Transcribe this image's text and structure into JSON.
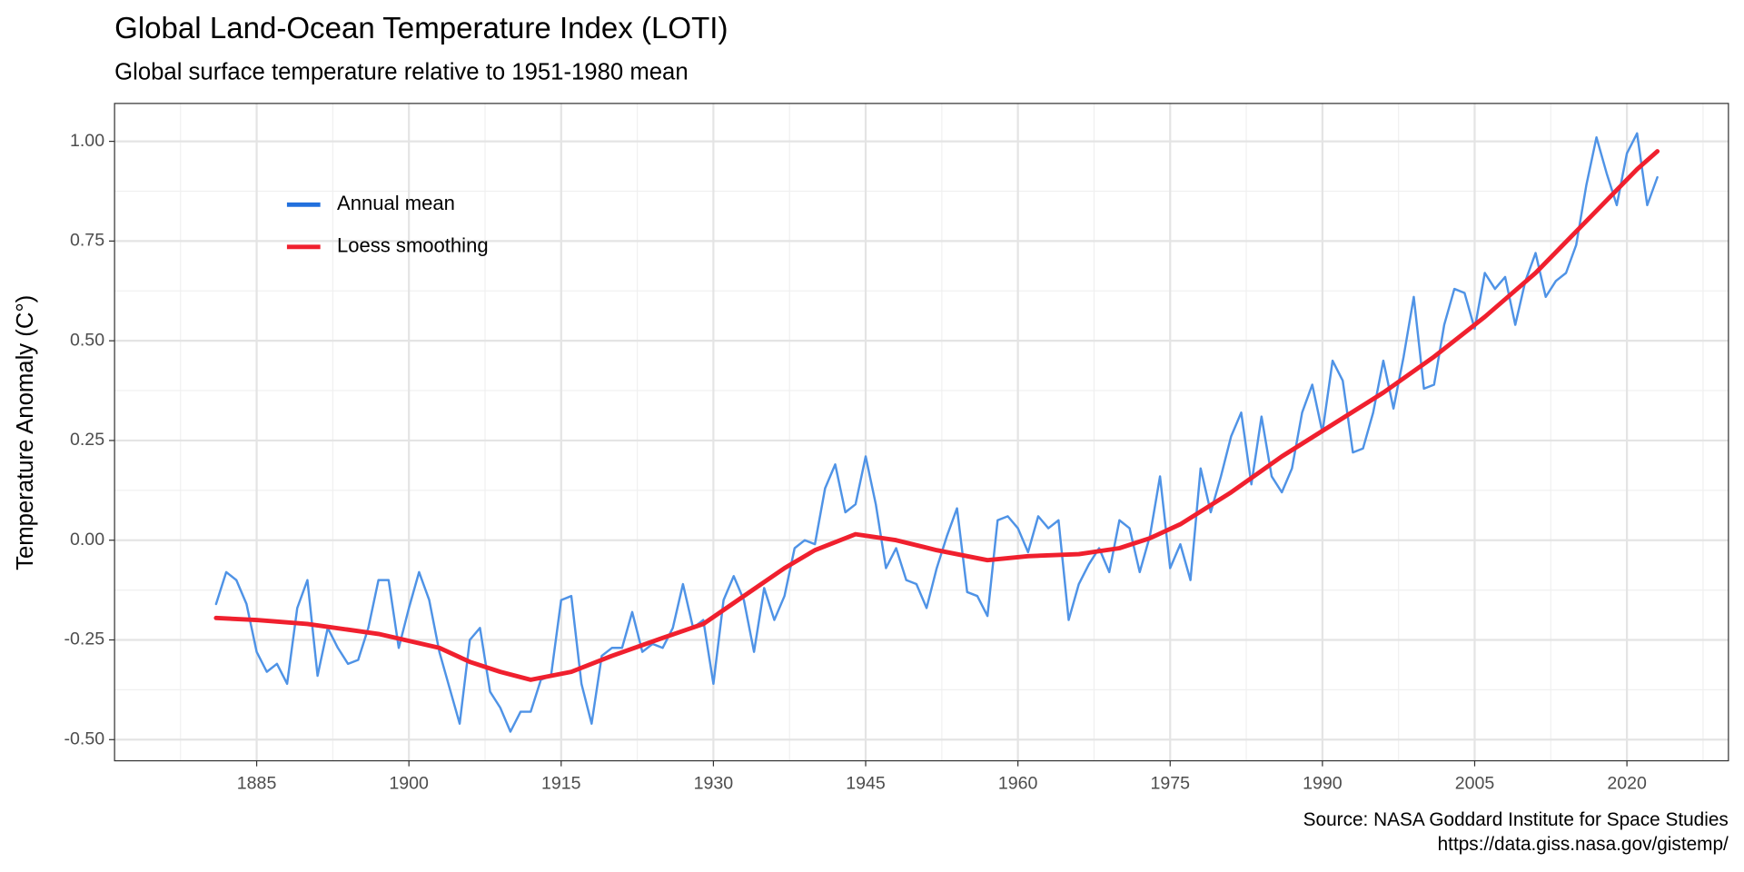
{
  "chart_data": {
    "type": "line",
    "title": "Global Land-Ocean Temperature Index (LOTI)",
    "subtitle": "Global surface temperature relative to 1951-1980 mean",
    "y_label": "Temperature Anomaly (C°)",
    "caption": [
      "Source: NASA Goddard Institute for Space Studies",
      "https://data.giss.nasa.gov/gistemp/"
    ],
    "xlim": [
      1871,
      2030
    ],
    "xticks": [
      1885,
      1900,
      1915,
      1930,
      1945,
      1960,
      1975,
      1990,
      2005,
      2020
    ],
    "ylim": [
      -0.553,
      1.095
    ],
    "yticks": [
      {
        "value": -0.5,
        "label": "-0.50"
      },
      {
        "value": -0.25,
        "label": "-0.25"
      },
      {
        "value": 0,
        "label": "0.00"
      },
      {
        "value": 0.25,
        "label": "0.25"
      },
      {
        "value": 0.5,
        "label": "0.50"
      },
      {
        "value": 0.75,
        "label": "0.75"
      },
      {
        "value": 1,
        "label": "1.00"
      }
    ],
    "grid": true,
    "legend": "top-left",
    "series": [
      {
        "name": "Annual mean",
        "color": "#4f93e6",
        "legend_color": "#2270dd",
        "width": 2,
        "x": [
          1881,
          1882,
          1883,
          1884,
          1885,
          1886,
          1887,
          1888,
          1889,
          1890,
          1891,
          1892,
          1893,
          1894,
          1895,
          1896,
          1897,
          1898,
          1899,
          1900,
          1901,
          1902,
          1903,
          1904,
          1905,
          1906,
          1907,
          1908,
          1909,
          1910,
          1911,
          1912,
          1913,
          1914,
          1915,
          1916,
          1917,
          1918,
          1919,
          1920,
          1921,
          1922,
          1923,
          1924,
          1925,
          1926,
          1927,
          1928,
          1929,
          1930,
          1931,
          1932,
          1933,
          1934,
          1935,
          1936,
          1937,
          1938,
          1939,
          1940,
          1941,
          1942,
          1943,
          1944,
          1945,
          1946,
          1947,
          1948,
          1949,
          1950,
          1951,
          1952,
          1953,
          1954,
          1955,
          1956,
          1957,
          1958,
          1959,
          1960,
          1961,
          1962,
          1963,
          1964,
          1965,
          1966,
          1967,
          1968,
          1969,
          1970,
          1971,
          1972,
          1973,
          1974,
          1975,
          1976,
          1977,
          1978,
          1979,
          1980,
          1981,
          1982,
          1983,
          1984,
          1985,
          1986,
          1987,
          1988,
          1989,
          1990,
          1991,
          1992,
          1993,
          1994,
          1995,
          1996,
          1997,
          1998,
          1999,
          2000,
          2001,
          2002,
          2003,
          2004,
          2005,
          2006,
          2007,
          2008,
          2009,
          2010,
          2011,
          2012,
          2013,
          2014,
          2015,
          2016,
          2017,
          2018,
          2019,
          2020,
          2021,
          2022,
          2023
        ],
        "values": [
          -0.16,
          -0.08,
          -0.1,
          -0.16,
          -0.28,
          -0.33,
          -0.31,
          -0.36,
          -0.17,
          -0.1,
          -0.34,
          -0.22,
          -0.27,
          -0.31,
          -0.3,
          -0.22,
          -0.1,
          -0.1,
          -0.27,
          -0.17,
          -0.08,
          -0.15,
          -0.28,
          -0.37,
          -0.46,
          -0.25,
          -0.22,
          -0.38,
          -0.42,
          -0.48,
          -0.43,
          -0.43,
          -0.35,
          -0.34,
          -0.15,
          -0.14,
          -0.36,
          -0.46,
          -0.29,
          -0.27,
          -0.27,
          -0.18,
          -0.28,
          -0.26,
          -0.27,
          -0.22,
          -0.11,
          -0.22,
          -0.2,
          -0.36,
          -0.15,
          -0.09,
          -0.15,
          -0.28,
          -0.12,
          -0.2,
          -0.14,
          -0.02,
          0.0,
          -0.01,
          0.13,
          0.19,
          0.07,
          0.09,
          0.21,
          0.09,
          -0.07,
          -0.02,
          -0.1,
          -0.11,
          -0.17,
          -0.07,
          0.01,
          0.08,
          -0.13,
          -0.14,
          -0.19,
          0.05,
          0.06,
          0.03,
          -0.03,
          0.06,
          0.03,
          0.05,
          -0.2,
          -0.11,
          -0.06,
          -0.02,
          -0.08,
          0.05,
          0.03,
          -0.08,
          0.01,
          0.16,
          -0.07,
          -0.01,
          -0.1,
          0.18,
          0.07,
          0.16,
          0.26,
          0.32,
          0.14,
          0.31,
          0.16,
          0.12,
          0.18,
          0.32,
          0.39,
          0.27,
          0.45,
          0.4,
          0.22,
          0.23,
          0.32,
          0.45,
          0.33,
          0.46,
          0.61,
          0.38,
          0.39,
          0.54,
          0.63,
          0.62,
          0.53,
          0.67,
          0.63,
          0.66,
          0.54,
          0.65,
          0.72,
          0.61,
          0.65,
          0.67,
          0.74,
          0.89,
          1.01,
          0.92,
          0.84,
          0.97,
          1.02,
          0.84,
          0.91
        ]
      },
      {
        "name": "Loess smoothing",
        "color": "#f0202e",
        "legend_color": "#f0202e",
        "width": 4,
        "x": [
          1881,
          1885,
          1890,
          1897,
          1903,
          1906,
          1909,
          1912,
          1916,
          1920,
          1925,
          1929,
          1933,
          1937,
          1940,
          1944,
          1948,
          1952,
          1957,
          1961,
          1966,
          1970,
          1973,
          1976,
          1981,
          1986,
          1991,
          1996,
          2001,
          2006,
          2011,
          2016,
          2021,
          2023
        ],
        "values": [
          -0.195,
          -0.2,
          -0.21,
          -0.235,
          -0.27,
          -0.305,
          -0.33,
          -0.35,
          -0.33,
          -0.29,
          -0.245,
          -0.21,
          -0.14,
          -0.07,
          -0.025,
          0.015,
          0.0,
          -0.025,
          -0.05,
          -0.04,
          -0.035,
          -0.02,
          0.005,
          0.04,
          0.12,
          0.21,
          0.29,
          0.37,
          0.46,
          0.56,
          0.67,
          0.8,
          0.93,
          0.975
        ]
      }
    ]
  }
}
